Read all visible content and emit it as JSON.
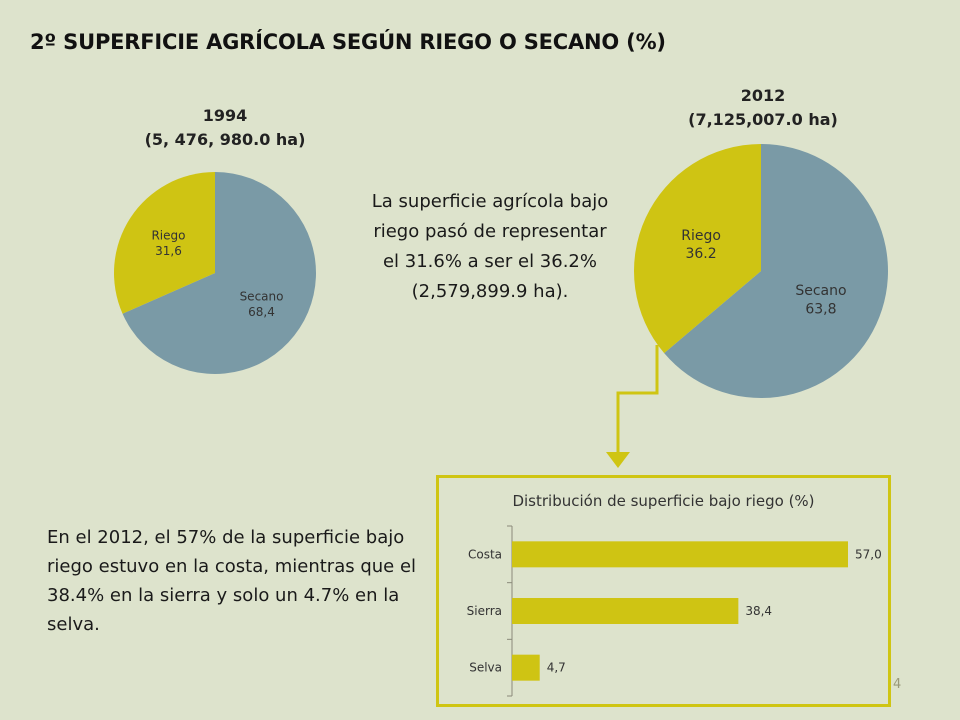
{
  "slide": {
    "title": "2º SUPERFICIE AGRÍCOLA SEGÚN RIEGO O SECANO (%)",
    "middle_text": "La superficie agrícola bajo riego pasó de representar el 31.6% a ser el 36.2% (2,579,899.9 ha).",
    "bottom_text": "En el 2012, el 57% de la superficie bajo riego estuvo en la costa, mientras que el 38.4% en la sierra y solo un 4.7% en la selva.",
    "page_number": "4"
  },
  "colors": {
    "riego": "#cfc413",
    "secano": "#7a9aa6",
    "bar": "#cfc413",
    "background": "#dde3cc"
  },
  "chart_data": [
    {
      "type": "pie",
      "title": "1994",
      "subtitle": "(5, 476, 980.0 ha)",
      "slices": [
        {
          "label": "Secano",
          "value": 68.4,
          "display": "68,4"
        },
        {
          "label": "Riego",
          "value": 31.6,
          "display": "31,6"
        }
      ]
    },
    {
      "type": "pie",
      "title": "2012",
      "subtitle": "(7,125,007.0 ha)",
      "slices": [
        {
          "label": "Secano",
          "value": 63.8,
          "display": "63,8"
        },
        {
          "label": "Riego",
          "value": 36.2,
          "display": "36.2"
        }
      ]
    },
    {
      "type": "bar",
      "orientation": "horizontal",
      "title": "Distribución de superficie bajo riego (%)",
      "categories": [
        "Costa",
        "Sierra",
        "Selva"
      ],
      "values": [
        57.0,
        38.4,
        4.7
      ],
      "value_labels": [
        "57,0",
        "38,4",
        "4,7"
      ],
      "xlim": [
        0,
        57
      ]
    }
  ]
}
